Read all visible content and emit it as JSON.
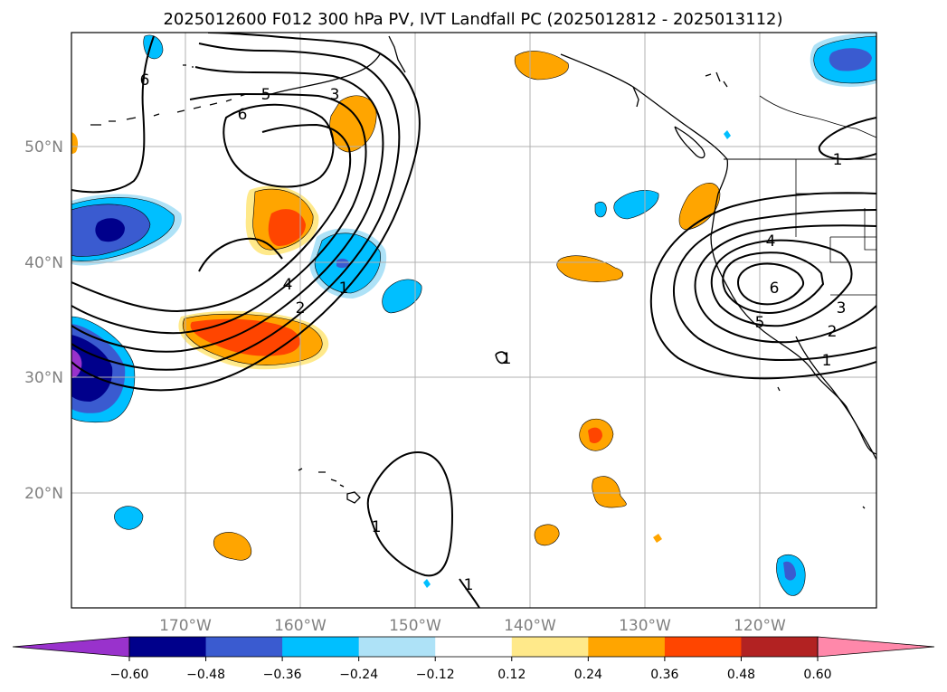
{
  "title": "2025012600 F012 300 hPa PV, IVT Landfall PC (2025012812 - 2025013112)",
  "lat_labels": [
    "50°N",
    "40°N",
    "30°N",
    "20°N"
  ],
  "lon_labels": [
    "170°W",
    "160°W",
    "150°W",
    "140°W",
    "130°W",
    "120°W"
  ],
  "colorbar": {
    "ticks": [
      "−0.60",
      "−0.48",
      "−0.36",
      "−0.24",
      "−0.12",
      "0.12",
      "0.24",
      "0.36",
      "0.48",
      "0.60"
    ],
    "under_color": "#9932cc",
    "bin_colors": [
      "#00008b",
      "#3a5bd0",
      "#00bfff",
      "#aee2f7",
      "#ffffff",
      "#ffe98a",
      "#ffa500",
      "#ff4500",
      "#b22222"
    ],
    "over_color": "#ff88aa"
  },
  "contour_labels": {
    "west_6_north": "6",
    "west_5": "5",
    "west_3": "3",
    "west_6": "6",
    "west_4": "4",
    "west_2": "2",
    "west_1": "1",
    "mid_1": "1",
    "hawaii_1": "1",
    "south_1": "1",
    "east_4": "4",
    "east_6": "6",
    "east_5": "5",
    "east_3": "3",
    "east_2": "2",
    "east_1": "1",
    "ne_1": "1"
  }
}
